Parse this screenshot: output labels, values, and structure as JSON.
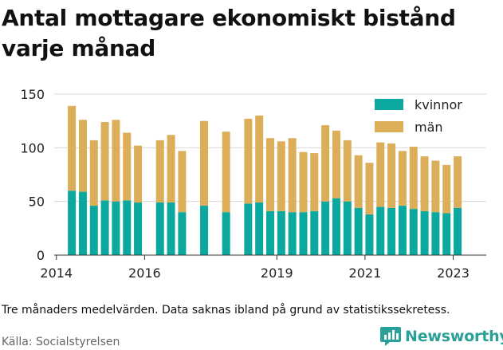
{
  "title": "Antal mottagare ekonomiskt bistånd varje månad",
  "footnote": "Tre månaders medelvärden. Data saknas ibland på grund av statistikssekretess.",
  "source": "Källa: Socialstyrelsen",
  "brand": "Newsworthy",
  "colors": {
    "kvinnor": "#0aa89e",
    "man": "#ddae5a",
    "brand": "#2aa198",
    "grid": "#d9d9d9",
    "axis": "#333333"
  },
  "chart_data": {
    "type": "bar",
    "stacked": true,
    "x_ticks": [
      2014,
      2016,
      2019,
      2021,
      2023
    ],
    "x_range": [
      2013.95,
      2023.75
    ],
    "ylim": [
      0,
      150
    ],
    "y_ticks": [
      0,
      50,
      100,
      150
    ],
    "grid": true,
    "legend_position": "top-right",
    "series": [
      {
        "name": "kvinnor",
        "color": "#0aa89e",
        "points": [
          {
            "x": 2014.35,
            "y": 60
          },
          {
            "x": 2014.6,
            "y": 59
          },
          {
            "x": 2014.85,
            "y": 46
          },
          {
            "x": 2015.1,
            "y": 51
          },
          {
            "x": 2015.35,
            "y": 50
          },
          {
            "x": 2015.6,
            "y": 51
          },
          {
            "x": 2015.85,
            "y": 49
          },
          {
            "x": 2016.35,
            "y": 49
          },
          {
            "x": 2016.6,
            "y": 49
          },
          {
            "x": 2016.85,
            "y": 40
          },
          {
            "x": 2017.35,
            "y": 46
          },
          {
            "x": 2017.85,
            "y": 40
          },
          {
            "x": 2018.35,
            "y": 48
          },
          {
            "x": 2018.6,
            "y": 49
          },
          {
            "x": 2018.85,
            "y": 41
          },
          {
            "x": 2019.1,
            "y": 41
          },
          {
            "x": 2019.35,
            "y": 40
          },
          {
            "x": 2019.6,
            "y": 40
          },
          {
            "x": 2019.85,
            "y": 41
          },
          {
            "x": 2020.1,
            "y": 50
          },
          {
            "x": 2020.35,
            "y": 53
          },
          {
            "x": 2020.6,
            "y": 50
          },
          {
            "x": 2020.85,
            "y": 44
          },
          {
            "x": 2021.1,
            "y": 38
          },
          {
            "x": 2021.35,
            "y": 45
          },
          {
            "x": 2021.6,
            "y": 44
          },
          {
            "x": 2021.85,
            "y": 46
          },
          {
            "x": 2022.1,
            "y": 43
          },
          {
            "x": 2022.35,
            "y": 41
          },
          {
            "x": 2022.6,
            "y": 40
          },
          {
            "x": 2022.85,
            "y": 39
          },
          {
            "x": 2023.1,
            "y": 44
          }
        ]
      },
      {
        "name": "män",
        "color": "#ddae5a",
        "points": [
          {
            "x": 2014.35,
            "y": 79
          },
          {
            "x": 2014.6,
            "y": 67
          },
          {
            "x": 2014.85,
            "y": 61
          },
          {
            "x": 2015.1,
            "y": 73
          },
          {
            "x": 2015.35,
            "y": 76
          },
          {
            "x": 2015.6,
            "y": 63
          },
          {
            "x": 2015.85,
            "y": 53
          },
          {
            "x": 2016.35,
            "y": 58
          },
          {
            "x": 2016.6,
            "y": 63
          },
          {
            "x": 2016.85,
            "y": 57
          },
          {
            "x": 2017.35,
            "y": 79
          },
          {
            "x": 2017.85,
            "y": 75
          },
          {
            "x": 2018.35,
            "y": 79
          },
          {
            "x": 2018.6,
            "y": 81
          },
          {
            "x": 2018.85,
            "y": 68
          },
          {
            "x": 2019.1,
            "y": 65
          },
          {
            "x": 2019.35,
            "y": 69
          },
          {
            "x": 2019.6,
            "y": 56
          },
          {
            "x": 2019.85,
            "y": 54
          },
          {
            "x": 2020.1,
            "y": 71
          },
          {
            "x": 2020.35,
            "y": 63
          },
          {
            "x": 2020.6,
            "y": 57
          },
          {
            "x": 2020.85,
            "y": 49
          },
          {
            "x": 2021.1,
            "y": 48
          },
          {
            "x": 2021.35,
            "y": 60
          },
          {
            "x": 2021.6,
            "y": 60
          },
          {
            "x": 2021.85,
            "y": 51
          },
          {
            "x": 2022.1,
            "y": 58
          },
          {
            "x": 2022.35,
            "y": 51
          },
          {
            "x": 2022.6,
            "y": 48
          },
          {
            "x": 2022.85,
            "y": 45
          },
          {
            "x": 2023.1,
            "y": 48
          }
        ]
      }
    ]
  }
}
